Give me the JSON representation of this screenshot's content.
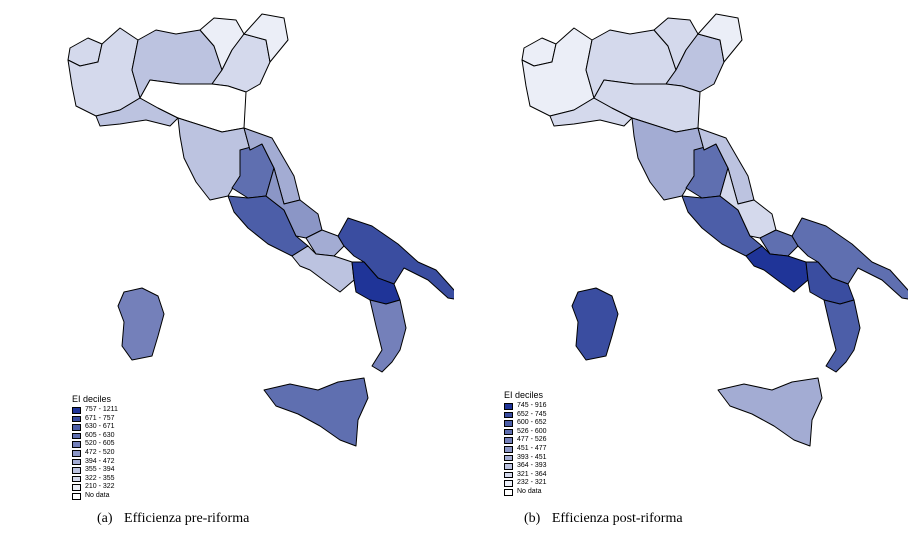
{
  "maps": [
    {
      "id": "pre",
      "caption": {
        "label": "(a)",
        "text": "Efficienza pre-riforma"
      },
      "legend": {
        "title": "EI deciles",
        "classes": [
          {
            "range": "757 - 1211",
            "color": "#1f3498"
          },
          {
            "range": "671 - 757",
            "color": "#3a4da0"
          },
          {
            "range": "630 - 671",
            "color": "#4c5ea8"
          },
          {
            "range": "605 - 630",
            "color": "#5f6fb0"
          },
          {
            "range": "520 - 605",
            "color": "#7480ba"
          },
          {
            "range": "472 - 520",
            "color": "#8b96c6"
          },
          {
            "range": "394 - 472",
            "color": "#a3acd3"
          },
          {
            "range": "355 - 394",
            "color": "#bcc3e0"
          },
          {
            "range": "322 - 355",
            "color": "#d4d9ec"
          },
          {
            "range": "210 - 322",
            "color": "#ebeef7"
          },
          {
            "range": "No data",
            "color": "#ffffff"
          }
        ]
      },
      "regions": {
        "valle-aosta": "#d4d9ec",
        "piemonte": "#d4d9ec",
        "lombardia": "#bcc3e0",
        "trentino": "#ebeef7",
        "veneto": "#d4d9ec",
        "friuli": "#ebeef7",
        "liguria": "#bcc3e0",
        "emilia-romagna": "#ffffff",
        "toscana": "#bcc3e0",
        "umbria": "#5f6fb0",
        "marche": "#a3acd3",
        "lazio": "#4c5ea8",
        "abruzzo": "#8b96c6",
        "molise": "#a3acd3",
        "campania": "#bcc3e0",
        "puglia": "#3a4da0",
        "basilicata": "#1f3498",
        "calabria": "#7480ba",
        "sicilia": "#5f6fb0",
        "sardegna": "#7480ba"
      }
    },
    {
      "id": "post",
      "caption": {
        "label": "(b)",
        "text": "Efficienza post-riforma"
      },
      "legend": {
        "title": "EI deciles",
        "classes": [
          {
            "range": "745 - 916",
            "color": "#1f3498"
          },
          {
            "range": "652 - 745",
            "color": "#3a4da0"
          },
          {
            "range": "600 - 652",
            "color": "#4c5ea8"
          },
          {
            "range": "526 - 600",
            "color": "#5f6fb0"
          },
          {
            "range": "477 - 526",
            "color": "#7480ba"
          },
          {
            "range": "451 - 477",
            "color": "#8b96c6"
          },
          {
            "range": "393 - 451",
            "color": "#a3acd3"
          },
          {
            "range": "364 - 393",
            "color": "#bcc3e0"
          },
          {
            "range": "321 - 364",
            "color": "#d4d9ec"
          },
          {
            "range": "232 - 321",
            "color": "#ebeef7"
          },
          {
            "range": "No data",
            "color": "#ffffff"
          }
        ]
      },
      "regions": {
        "valle-aosta": "#ebeef7",
        "piemonte": "#ebeef7",
        "lombardia": "#d4d9ec",
        "trentino": "#d4d9ec",
        "veneto": "#bcc3e0",
        "friuli": "#ebeef7",
        "liguria": "#d4d9ec",
        "emilia-romagna": "#d4d9ec",
        "toscana": "#a3acd3",
        "umbria": "#5f6fb0",
        "marche": "#bcc3e0",
        "lazio": "#4c5ea8",
        "abruzzo": "#d4d9ec",
        "molise": "#5f6fb0",
        "campania": "#1f3498",
        "puglia": "#5f6fb0",
        "basilicata": "#3a4da0",
        "calabria": "#4c5ea8",
        "sicilia": "#a3acd3",
        "sardegna": "#3a4da0"
      }
    }
  ]
}
